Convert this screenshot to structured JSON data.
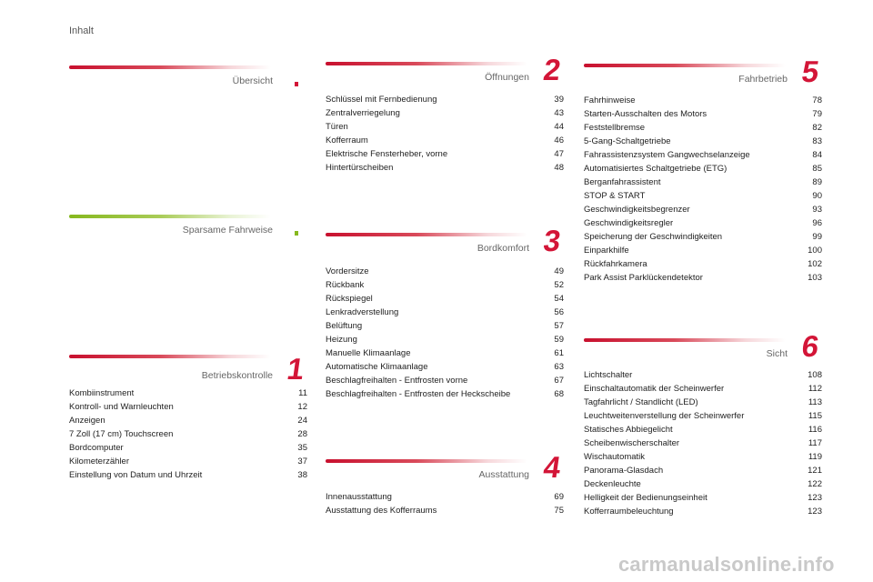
{
  "page_label": "Inhalt",
  "sections": {
    "uebersicht": {
      "title": "Übersicht",
      "entries": []
    },
    "sparsame": {
      "title": "Sparsame Fahrweise",
      "entries": []
    },
    "betrieb": {
      "title": "Betriebskontrolle",
      "number": "1",
      "entries": [
        {
          "title": "Kombiinstrument",
          "page": "11"
        },
        {
          "title": "Kontroll- und Warnleuchten",
          "page": "12"
        },
        {
          "title": "Anzeigen",
          "page": "24"
        },
        {
          "title": "7 Zoll (17 cm) Touchscreen",
          "page": "28"
        },
        {
          "title": "Bordcomputer",
          "page": "35"
        },
        {
          "title": "Kilometerzähler",
          "page": "37"
        },
        {
          "title": "Einstellung von Datum und Uhrzeit",
          "page": "38"
        }
      ]
    },
    "oeffnungen": {
      "title": "Öffnungen",
      "number": "2",
      "entries": [
        {
          "title": "Schlüssel mit Fernbedienung",
          "page": "39"
        },
        {
          "title": "Zentralverriegelung",
          "page": "43"
        },
        {
          "title": "Türen",
          "page": "44"
        },
        {
          "title": "Kofferraum",
          "page": "46"
        },
        {
          "title": "Elektrische Fensterheber, vorne",
          "page": "47"
        },
        {
          "title": "Hintertürscheiben",
          "page": "48"
        }
      ]
    },
    "bordkomfort": {
      "title": "Bordkomfort",
      "number": "3",
      "entries": [
        {
          "title": "Vordersitze",
          "page": "49"
        },
        {
          "title": "Rückbank",
          "page": "52"
        },
        {
          "title": "Rückspiegel",
          "page": "54"
        },
        {
          "title": "Lenkradverstellung",
          "page": "56"
        },
        {
          "title": "Belüftung",
          "page": "57"
        },
        {
          "title": "Heizung",
          "page": "59"
        },
        {
          "title": "Manuelle Klimaanlage",
          "page": "61"
        },
        {
          "title": "Automatische Klimaanlage",
          "page": "63"
        },
        {
          "title": "Beschlagfreihalten - Entfrosten vorne",
          "page": "67"
        },
        {
          "title": "Beschlagfreihalten - Entfrosten der Heckscheibe",
          "page": "68"
        }
      ]
    },
    "ausstattung": {
      "title": "Ausstattung",
      "number": "4",
      "entries": [
        {
          "title": "Innenausstattung",
          "page": "69"
        },
        {
          "title": "Ausstattung des Kofferraums",
          "page": "75"
        }
      ]
    },
    "fahrbetrieb": {
      "title": "Fahrbetrieb",
      "number": "5",
      "entries": [
        {
          "title": "Fahrhinweise",
          "page": "78"
        },
        {
          "title": "Starten-Ausschalten des Motors",
          "page": "79"
        },
        {
          "title": "Feststellbremse",
          "page": "82"
        },
        {
          "title": "5-Gang-Schaltgetriebe",
          "page": "83"
        },
        {
          "title": "Fahrassistenzsystem Gangwechselanzeige",
          "page": "84"
        },
        {
          "title": "Automatisiertes Schaltgetriebe (ETG)",
          "page": "85"
        },
        {
          "title": "Berganfahrassistent",
          "page": "89"
        },
        {
          "title": "STOP & START",
          "page": "90"
        },
        {
          "title": "Geschwindigkeitsbegrenzer",
          "page": "93"
        },
        {
          "title": "Geschwindigkeitsregler",
          "page": "96"
        },
        {
          "title": "Speicherung der Geschwindigkeiten",
          "page": "99"
        },
        {
          "title": "Einparkhilfe",
          "page": "100"
        },
        {
          "title": "Rückfahrkamera",
          "page": "102"
        },
        {
          "title": "Park Assist Parklückendetektor",
          "page": "103"
        }
      ]
    },
    "sicht": {
      "title": "Sicht",
      "number": "6",
      "entries": [
        {
          "title": "Lichtschalter",
          "page": "108"
        },
        {
          "title": "Einschaltautomatik der Scheinwerfer",
          "page": "112"
        },
        {
          "title": "Tagfahrlicht / Standlicht (LED)",
          "page": "113"
        },
        {
          "title": "Leuchtweitenverstellung der Scheinwerfer",
          "page": "115"
        },
        {
          "title": "Statisches Abbiegelicht",
          "page": "116"
        },
        {
          "title": "Scheibenwischerschalter",
          "page": "117"
        },
        {
          "title": "Wischautomatik",
          "page": "119"
        },
        {
          "title": "Panorama-Glasdach",
          "page": "121"
        },
        {
          "title": "Deckenleuchte",
          "page": "122"
        },
        {
          "title": "Helligkeit der Bedienungseinheit",
          "page": "123"
        },
        {
          "title": "Kofferraumbeleuchtung",
          "page": "123"
        }
      ]
    }
  },
  "watermark": "carmanualsonline.info",
  "colors": {
    "accent_red": "#d31537",
    "accent_green": "#86b81e"
  }
}
